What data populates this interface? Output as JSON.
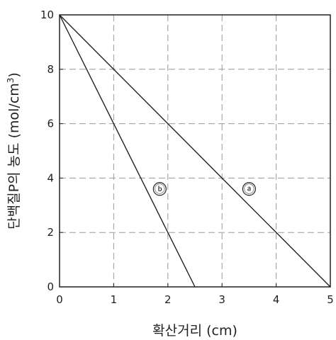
{
  "chart_data": {
    "type": "line",
    "xlabel": "확산거리 (cm)",
    "ylabel_main": "단백질P의 농도 (mol/cm",
    "ylabel_sup": "3",
    "ylabel_close": ")",
    "xlim": [
      0,
      5
    ],
    "ylim": [
      0,
      10
    ],
    "x_ticks": [
      "0",
      "1",
      "2",
      "3",
      "4",
      "5"
    ],
    "y_ticks": [
      "0",
      "2",
      "4",
      "6",
      "8",
      "10"
    ],
    "grid": true,
    "series": [
      {
        "name": "ⓐ",
        "x": [
          0,
          5
        ],
        "y": [
          10,
          0
        ]
      },
      {
        "name": "ⓑ",
        "x": [
          0,
          2.5
        ],
        "y": [
          10,
          0
        ]
      }
    ],
    "annotations": [
      {
        "text": "ⓐ",
        "x": 3.5,
        "y": 3.6
      },
      {
        "text": "ⓑ",
        "x": 1.85,
        "y": 3.6
      }
    ]
  }
}
